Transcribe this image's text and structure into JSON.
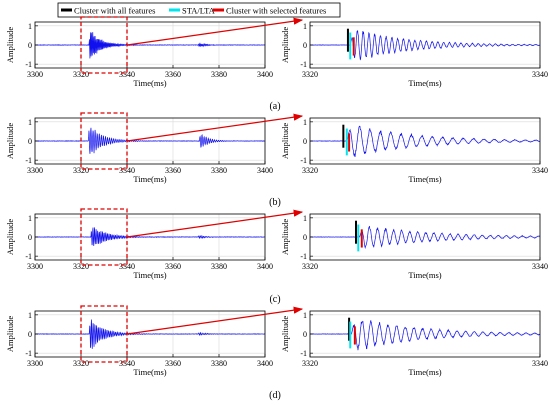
{
  "legend": {
    "items": [
      {
        "label": "Cluster with all features",
        "color": "#000000"
      },
      {
        "label": "STA/LTA",
        "color": "#00e5ee"
      },
      {
        "label": "Cluster with selected features",
        "color": "#e00000"
      }
    ]
  },
  "panel_labels": [
    "(a)",
    "(b)",
    "(c)",
    "(d)"
  ],
  "colors": {
    "waveform": "#1010ee",
    "zoom_box": "#e00000",
    "arrow": "#e00000"
  },
  "chart_data": [
    {
      "type": "line",
      "panel": "(a)",
      "view": "full",
      "xlabel": "Time(ms)",
      "ylabel": "Amplitude",
      "xlim": [
        3300,
        3400
      ],
      "ylim": [
        -1.2,
        1.2
      ],
      "xticks": [
        3300,
        3320,
        3340,
        3360,
        3380,
        3400
      ],
      "yticks": [
        -1,
        0,
        1
      ],
      "zoom_window": [
        3320,
        3340
      ],
      "signal": [
        {
          "onset": 3323.5,
          "peak": 1.0,
          "decay_ms": 4.5,
          "period_ms": 0.5
        },
        {
          "onset": 3371.0,
          "peak": 0.12,
          "decay_ms": 3.0,
          "period_ms": 0.5
        }
      ]
    },
    {
      "type": "line",
      "panel": "(a)",
      "view": "zoom",
      "xlabel": "Time(ms)",
      "ylabel": "Amplitude",
      "xlim": [
        3320,
        3340
      ],
      "ylim": [
        -1.2,
        1.2
      ],
      "xticks": [
        3320,
        3340
      ],
      "yticks": [
        -1,
        0,
        1
      ],
      "picks": {
        "cluster_all": 3323.3,
        "sta_lta": 3323.5,
        "cluster_selected": 3323.8
      },
      "signal": [
        {
          "onset": 3323.5,
          "peak": 1.0,
          "decay_ms": 4.5,
          "period_ms": 0.5
        }
      ]
    },
    {
      "type": "line",
      "panel": "(b)",
      "view": "full",
      "xlabel": "Time(ms)",
      "ylabel": "Amplitude",
      "xlim": [
        3300,
        3400
      ],
      "ylim": [
        -1.2,
        1.2
      ],
      "xticks": [
        3300,
        3320,
        3340,
        3360,
        3380,
        3400
      ],
      "yticks": [
        -1,
        0,
        1
      ],
      "zoom_window": [
        3320,
        3340
      ],
      "signal": [
        {
          "onset": 3323.2,
          "peak": 1.0,
          "decay_ms": 5.5,
          "period_ms": 0.9
        },
        {
          "onset": 3371.5,
          "peak": 0.5,
          "decay_ms": 3.5,
          "period_ms": 0.9
        }
      ]
    },
    {
      "type": "line",
      "panel": "(b)",
      "view": "zoom",
      "xlabel": "Time(ms)",
      "ylabel": "Amplitude",
      "xlim": [
        3320,
        3340
      ],
      "ylim": [
        -1.2,
        1.2
      ],
      "xticks": [
        3320,
        3340
      ],
      "yticks": [
        -1,
        0,
        1
      ],
      "picks": {
        "cluster_all": 3322.9,
        "sta_lta": 3323.2,
        "cluster_selected": 3323.4
      },
      "signal": [
        {
          "onset": 3323.2,
          "peak": 1.0,
          "decay_ms": 5.5,
          "period_ms": 0.9
        }
      ]
    },
    {
      "type": "line",
      "panel": "(c)",
      "view": "full",
      "xlabel": "Time(ms)",
      "ylabel": "Amplitude",
      "xlim": [
        3300,
        3400
      ],
      "ylim": [
        -1.2,
        1.2
      ],
      "xticks": [
        3300,
        3320,
        3340,
        3360,
        3380,
        3400
      ],
      "yticks": [
        -1,
        0,
        1
      ],
      "zoom_window": [
        3320,
        3340
      ],
      "signal": [
        {
          "onset": 3324.3,
          "peak": 0.7,
          "decay_ms": 6.0,
          "period_ms": 0.7
        },
        {
          "onset": 3371.0,
          "peak": 0.1,
          "decay_ms": 3.0,
          "period_ms": 0.7
        }
      ]
    },
    {
      "type": "line",
      "panel": "(c)",
      "view": "zoom",
      "xlabel": "Time(ms)",
      "ylabel": "Amplitude",
      "xlim": [
        3320,
        3340
      ],
      "ylim": [
        -1.2,
        1.2
      ],
      "xticks": [
        3320,
        3340
      ],
      "yticks": [
        -1,
        0,
        1
      ],
      "picks": {
        "cluster_all": 3324.0,
        "sta_lta": 3324.2,
        "cluster_selected": 3324.5
      },
      "signal": [
        {
          "onset": 3324.3,
          "peak": 0.7,
          "decay_ms": 6.0,
          "period_ms": 0.7
        }
      ]
    },
    {
      "type": "line",
      "panel": "(d)",
      "view": "full",
      "xlabel": "Time(ms)",
      "ylabel": "Amplitude",
      "xlim": [
        3300,
        3400
      ],
      "ylim": [
        -1.2,
        1.2
      ],
      "xticks": [
        3300,
        3320,
        3340,
        3360,
        3380,
        3400
      ],
      "yticks": [
        -1,
        0,
        1
      ],
      "zoom_window": [
        3320,
        3340
      ],
      "signal": [
        {
          "onset": 3323.6,
          "peak": 1.0,
          "decay_ms": 5.5,
          "period_ms": 0.75
        },
        {
          "onset": 3371.0,
          "peak": 0.1,
          "decay_ms": 3.0,
          "period_ms": 0.75
        }
      ]
    },
    {
      "type": "line",
      "panel": "(d)",
      "view": "zoom",
      "xlabel": "Time(ms)",
      "ylabel": "Amplitude",
      "xlim": [
        3320,
        3340
      ],
      "ylim": [
        -1.2,
        1.2
      ],
      "xticks": [
        3320,
        3340
      ],
      "yticks": [
        -1,
        0,
        1
      ],
      "picks": {
        "cluster_all": 3323.4,
        "sta_lta": 3323.5,
        "cluster_selected": 3323.9
      },
      "signal": [
        {
          "onset": 3323.6,
          "peak": 1.0,
          "decay_ms": 5.5,
          "period_ms": 0.75
        }
      ]
    }
  ]
}
